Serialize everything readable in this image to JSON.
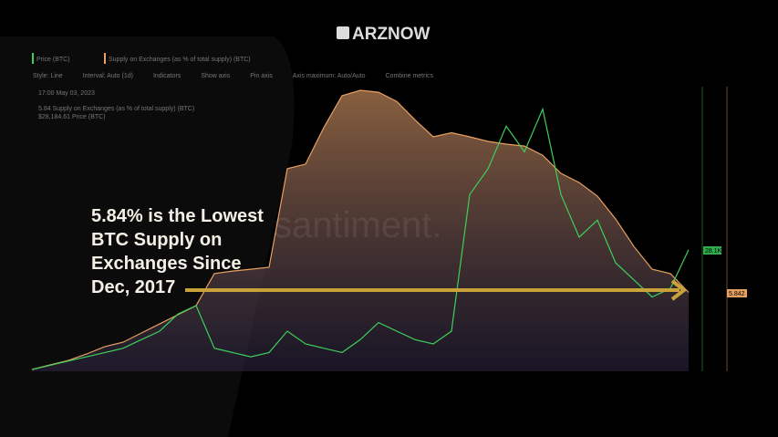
{
  "header": {
    "logo": "ARZNOW"
  },
  "toolbar": {
    "metrics": [
      "Price (BTC)",
      "Supply on Exchanges (as % of total supply) (BTC)"
    ],
    "controls": [
      "Style: Line",
      "Interval: Auto (1d)",
      "Indicators",
      "Show axis",
      "Pin axis",
      "Axis maximum: Auto/Auto",
      "Combine metrics"
    ]
  },
  "tooltip": {
    "date": "17:00 May 03, 2023",
    "lines": [
      "5.84 Supply on Exchanges (as % of total supply) (BTC)",
      "$28,184.61 Price (BTC)"
    ]
  },
  "watermark": "santiment.",
  "annotation": [
    "5.84% is the Lowest",
    "BTC Supply on",
    "Exchanges Since",
    "Dec, 2017"
  ],
  "tags": {
    "price": "28.1K",
    "supply": "5.842"
  },
  "chart_data": {
    "type": "line",
    "ylim": [
      0,
      66000
    ],
    "y2lim": [
      1.56,
      17
    ],
    "series": [
      {
        "name": "Supply on Exchanges (as % of total supply) (BTC)",
        "color": "#e8a060",
        "axis": "y2",
        "values": [
          1.66,
          1.91,
          2.15,
          2.5,
          2.9,
          3.14,
          3.64,
          4.13,
          4.63,
          5.12,
          6.86,
          7.0,
          7.1,
          7.2,
          12.55,
          12.8,
          14.78,
          16.51,
          16.8,
          16.7,
          16.2,
          15.2,
          14.28,
          14.5,
          14.28,
          14.03,
          13.88,
          13.78,
          13.28,
          12.3,
          11.8,
          11.06,
          9.82,
          8.33,
          7.1,
          6.86,
          5.84
        ]
      },
      {
        "name": "Price (BTC)",
        "color": "#3ecf5a",
        "values": [
          400,
          1390,
          2380,
          3370,
          4360,
          5350,
          7330,
          9300,
          13270,
          15250,
          5350,
          4360,
          3370,
          4360,
          9300,
          6340,
          5350,
          4360,
          7330,
          11290,
          9300,
          7330,
          6340,
          9300,
          41000,
          46930,
          56830,
          50900,
          60800,
          41000,
          31090,
          35060,
          25150,
          21190,
          17230,
          19210,
          28184
        ]
      }
    ]
  }
}
